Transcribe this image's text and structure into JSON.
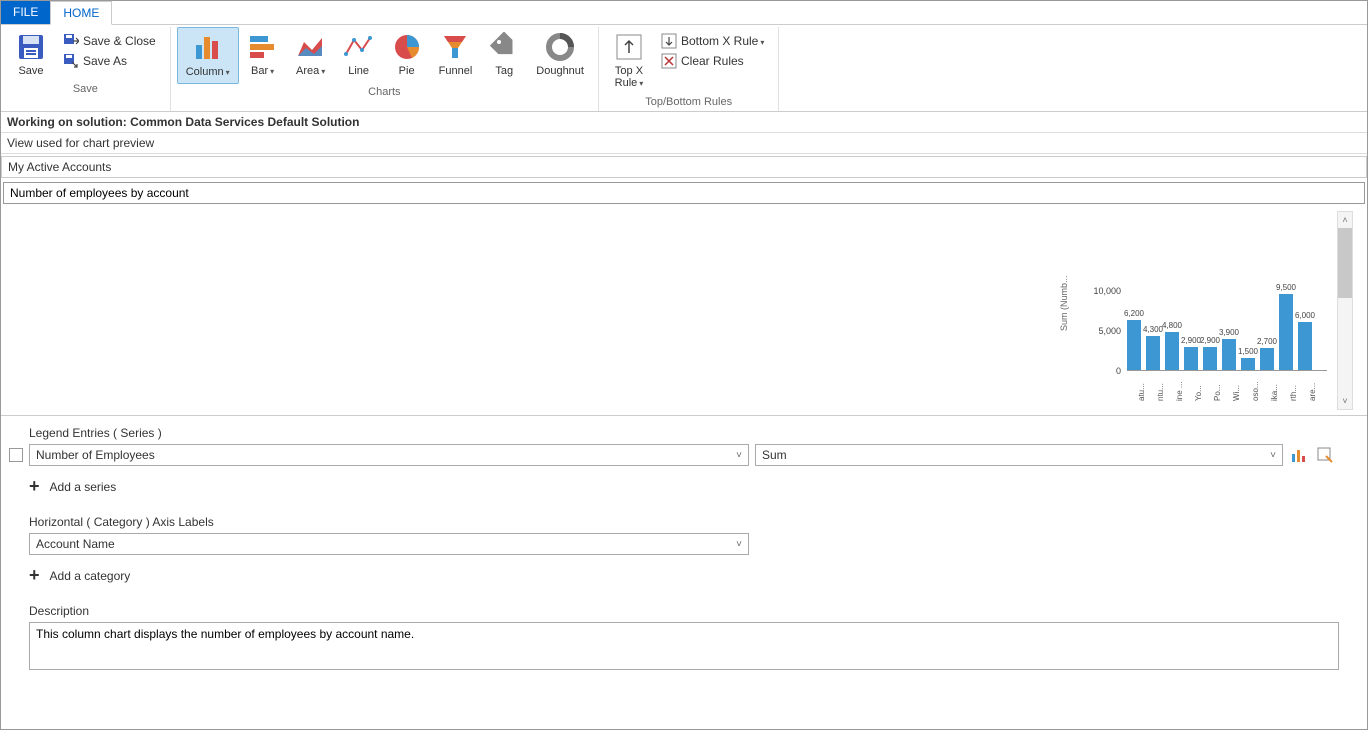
{
  "tabs": {
    "file": "FILE",
    "home": "HOME"
  },
  "ribbon": {
    "save": {
      "big": "Save",
      "saveClose": "Save & Close",
      "saveAs": "Save As",
      "groupLabel": "Save"
    },
    "charts": {
      "groupLabel": "Charts",
      "column": "Column",
      "bar": "Bar",
      "area": "Area",
      "line": "Line",
      "pie": "Pie",
      "funnel": "Funnel",
      "tag": "Tag",
      "doughnut": "Doughnut"
    },
    "rules": {
      "topX": "Top X\nRule",
      "bottomX": "Bottom X Rule",
      "clear": "Clear Rules",
      "groupLabel": "Top/Bottom Rules"
    }
  },
  "solution": {
    "working": "Working on solution: Common Data Services Default Solution",
    "viewUsed": "View used for chart preview",
    "viewName": "My Active Accounts"
  },
  "chartTitle": "Number of employees by account",
  "chart": {
    "type": "bar",
    "yLabel": "Sum (Numb...",
    "yTicks": [
      {
        "v": 10000,
        "label": "10,000"
      },
      {
        "v": 5000,
        "label": "5,000"
      },
      {
        "v": 0,
        "label": "0"
      }
    ],
    "yMax": 10000,
    "barColor": "#3d97d3",
    "bars": [
      {
        "v": 6200,
        "label": "6,200",
        "x": "atu..."
      },
      {
        "v": 4300,
        "label": "4,300",
        "x": "ntu..."
      },
      {
        "v": 4800,
        "label": "4,800",
        "x": "ine ..."
      },
      {
        "v": 2900,
        "label": "2,900",
        "x": "Yo..."
      },
      {
        "v": 2900,
        "label": "2,900",
        "x": "Po..."
      },
      {
        "v": 3900,
        "label": "3,900",
        "x": "Wi..."
      },
      {
        "v": 1500,
        "label": "1,500",
        "x": "oso..."
      },
      {
        "v": 2700,
        "label": "2,700",
        "x": "ika..."
      },
      {
        "v": 9500,
        "label": "9,500",
        "x": "rth..."
      },
      {
        "v": 6000,
        "label": "6,000",
        "x": "are..."
      }
    ]
  },
  "form": {
    "legendLabel": "Legend Entries ( Series )",
    "seriesField": "Number of Employees",
    "aggField": "Sum",
    "addSeries": "Add a series",
    "horizLabel": "Horizontal ( Category ) Axis Labels",
    "categoryField": "Account Name",
    "addCategory": "Add a category",
    "descLabel": "Description",
    "descValue": "This column chart displays the number of employees by account name."
  }
}
